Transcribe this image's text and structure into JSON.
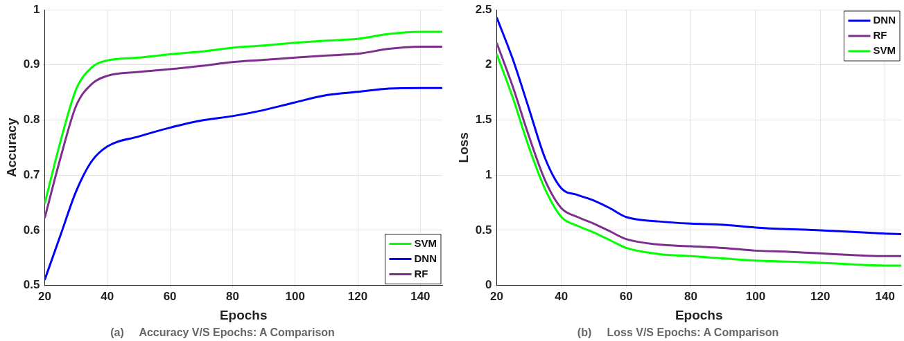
{
  "chart_data": [
    {
      "type": "line",
      "title": "(a)     Accuracy V/S Epochs: A Comparison",
      "xlabel": "Epochs",
      "ylabel": "Accuracy",
      "xlim": [
        20,
        147
      ],
      "xticks": [
        20,
        40,
        60,
        80,
        100,
        120,
        140
      ],
      "ylim": [
        0.5,
        1
      ],
      "yticks": [
        0.5,
        0.6,
        0.7,
        0.8,
        0.9,
        1
      ],
      "grid": true,
      "legend": "bottom right",
      "x": [
        20,
        25,
        30,
        35,
        40,
        50,
        60,
        70,
        80,
        90,
        100,
        110,
        120,
        130,
        140,
        147
      ],
      "series": [
        {
          "name": "SVM",
          "color": "#00ff00",
          "values": [
            0.648,
            0.76,
            0.855,
            0.895,
            0.908,
            0.913,
            0.919,
            0.924,
            0.931,
            0.935,
            0.94,
            0.944,
            0.947,
            0.956,
            0.96,
            0.96
          ]
        },
        {
          "name": "DNN",
          "color": "#0000ff",
          "values": [
            0.51,
            0.59,
            0.67,
            0.725,
            0.752,
            0.77,
            0.786,
            0.799,
            0.807,
            0.818,
            0.832,
            0.845,
            0.851,
            0.857,
            0.858,
            0.858
          ]
        },
        {
          "name": "RF",
          "color": "#7e2f8e",
          "values": [
            0.622,
            0.73,
            0.825,
            0.865,
            0.88,
            0.887,
            0.892,
            0.898,
            0.905,
            0.909,
            0.913,
            0.917,
            0.92,
            0.929,
            0.933,
            0.933
          ]
        }
      ]
    },
    {
      "type": "line",
      "title": "(b)     Loss V/S Epochs: A Comparison",
      "xlabel": "Epochs",
      "ylabel": "Loss",
      "xlim": [
        20,
        145
      ],
      "xticks": [
        20,
        40,
        60,
        80,
        100,
        120,
        140
      ],
      "ylim": [
        0,
        2.5
      ],
      "yticks": [
        0,
        0.5,
        1,
        1.5,
        2,
        2.5
      ],
      "grid": true,
      "legend": "top right",
      "x": [
        20,
        25,
        30,
        35,
        40,
        45,
        50,
        55,
        60,
        70,
        80,
        90,
        100,
        110,
        120,
        130,
        140,
        145
      ],
      "series": [
        {
          "name": "DNN",
          "color": "#0000ff",
          "values": [
            2.43,
            2.05,
            1.6,
            1.15,
            0.88,
            0.82,
            0.77,
            0.7,
            0.62,
            0.58,
            0.56,
            0.55,
            0.525,
            0.51,
            0.5,
            0.485,
            0.47,
            0.465
          ]
        },
        {
          "name": "RF",
          "color": "#7e2f8e",
          "values": [
            2.2,
            1.8,
            1.35,
            0.95,
            0.7,
            0.62,
            0.56,
            0.49,
            0.42,
            0.37,
            0.355,
            0.34,
            0.315,
            0.305,
            0.29,
            0.275,
            0.265,
            0.265
          ]
        },
        {
          "name": "SVM",
          "color": "#00ff00",
          "values": [
            2.1,
            1.7,
            1.25,
            0.87,
            0.62,
            0.54,
            0.48,
            0.41,
            0.34,
            0.285,
            0.265,
            0.245,
            0.225,
            0.215,
            0.205,
            0.19,
            0.18,
            0.18
          ]
        }
      ]
    }
  ]
}
